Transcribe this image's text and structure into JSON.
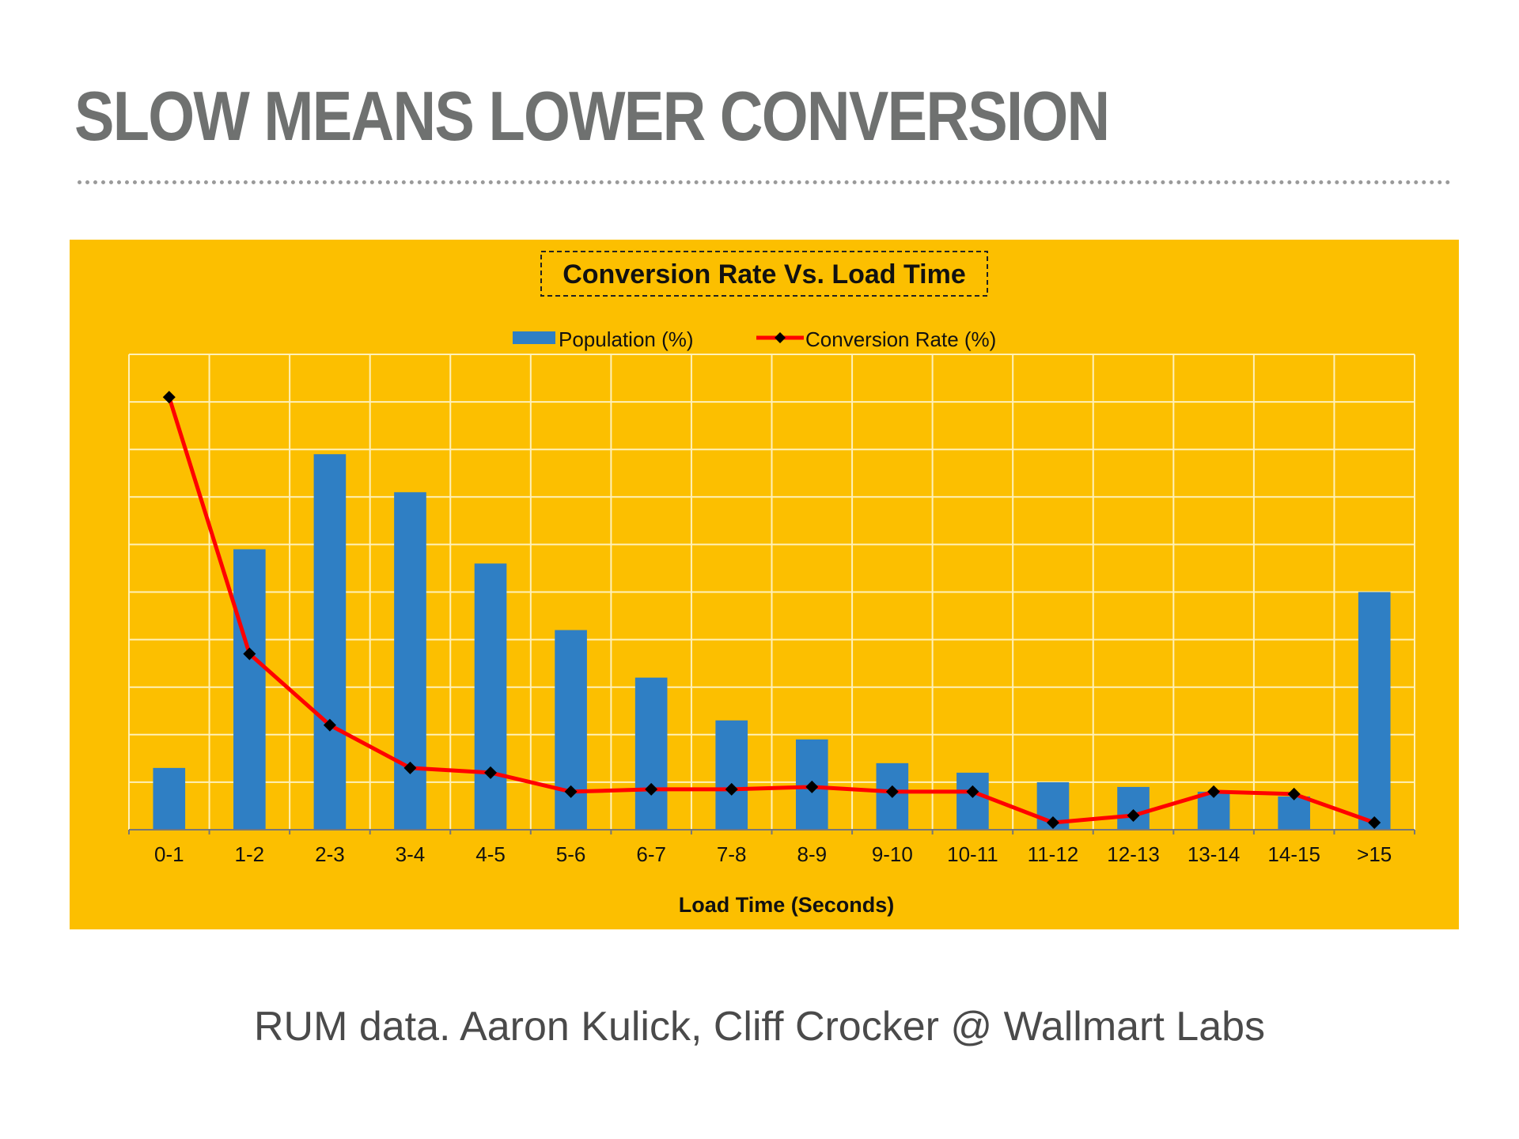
{
  "slide": {
    "title": "SLOW MEANS LOWER CONVERSION",
    "caption": "RUM data. Aaron Kulick, Cliff Crocker @ Wallmart Labs"
  },
  "colors": {
    "panel_background": "#fcbf00",
    "bar": "#2f7fc4",
    "line": "#ff0000",
    "marker": "#000000",
    "grid": "#fff1b8",
    "title_text": "#6f7170"
  },
  "chart_data": {
    "type": "bar",
    "title": "Conversion Rate Vs. Load Time",
    "xlabel": "Load Time (Seconds)",
    "ylabel": "",
    "categories": [
      "0-1",
      "1-2",
      "2-3",
      "3-4",
      "4-5",
      "5-6",
      "6-7",
      "7-8",
      "8-9",
      "9-10",
      "10-11",
      "11-12",
      "12-13",
      "13-14",
      "14-15",
      ">15"
    ],
    "ylim": [
      0,
      10
    ],
    "grid": true,
    "y_tick_labels_shown": false,
    "legend_position": "top",
    "series": [
      {
        "name": "Population (%)",
        "type": "bar",
        "values": [
          1.3,
          5.9,
          7.9,
          7.1,
          5.6,
          4.2,
          3.2,
          2.3,
          1.9,
          1.4,
          1.2,
          1.0,
          0.9,
          0.8,
          0.7,
          5.0
        ]
      },
      {
        "name": "Conversion Rate (%)",
        "type": "line",
        "marker": "diamond",
        "values": [
          9.1,
          3.7,
          2.2,
          1.3,
          1.2,
          0.8,
          0.85,
          0.85,
          0.9,
          0.8,
          0.8,
          0.15,
          0.3,
          0.8,
          0.75,
          0.15
        ]
      }
    ]
  }
}
